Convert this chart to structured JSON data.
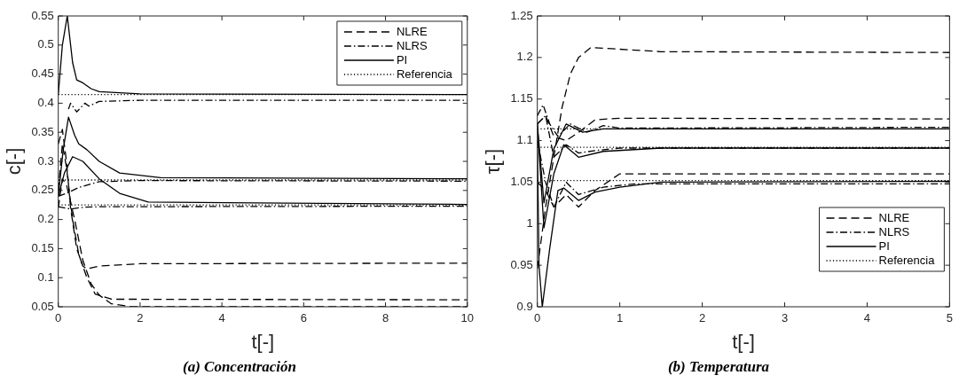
{
  "chart_data": [
    {
      "type": "line",
      "title": "(a) Concentración",
      "xlabel": "t[-]",
      "ylabel": "c[-]",
      "xlim": [
        0,
        10
      ],
      "ylim": [
        0.05,
        0.55
      ],
      "xticks": [
        0,
        2,
        4,
        6,
        8,
        10
      ],
      "yticks": [
        0.05,
        0.1,
        0.15,
        0.2,
        0.25,
        0.3,
        0.35,
        0.4,
        0.45,
        0.5,
        0.55
      ],
      "legend": "top right",
      "marker": "none",
      "series": [
        {
          "name": "NLRE",
          "color": "#000000",
          "line_style": "dashed",
          "x": [
            0,
            0.1,
            0.2,
            0.3,
            0.45,
            0.6,
            0.7,
            1,
            2,
            10
          ],
          "values": [
            0.33,
            0.355,
            0.3,
            0.22,
            0.15,
            0.12,
            0.115,
            0.12,
            0.124,
            0.125
          ]
        },
        {
          "color": "#000000",
          "line_style": "dashed",
          "x": [
            0,
            0.1,
            0.2,
            0.35,
            0.5,
            0.7,
            0.9,
            1.3,
            10
          ],
          "values": [
            0.25,
            0.33,
            0.29,
            0.2,
            0.14,
            0.1,
            0.072,
            0.063,
            0.062
          ]
        },
        {
          "color": "#000000",
          "line_style": "dashed",
          "x": [
            0,
            0.1,
            0.2,
            0.4,
            0.6,
            0.8,
            1,
            1.3,
            1.8,
            10
          ],
          "values": [
            0.22,
            0.27,
            0.26,
            0.2,
            0.13,
            0.09,
            0.07,
            0.055,
            0.05,
            0.05
          ]
        },
        {
          "name": "NLRS",
          "color": "#000000",
          "line_style": "dashdot",
          "x": [
            0.25,
            0.3,
            0.45,
            0.65,
            0.75,
            1,
            2,
            10
          ],
          "values": [
            0.39,
            0.4,
            0.385,
            0.4,
            0.395,
            0.403,
            0.405,
            0.405
          ]
        },
        {
          "color": "#000000",
          "line_style": "dashdot",
          "x": [
            0,
            0.2,
            0.5,
            1,
            2,
            10
          ],
          "values": [
            0.24,
            0.245,
            0.255,
            0.265,
            0.267,
            0.266
          ]
        },
        {
          "color": "#000000",
          "line_style": "dashdot",
          "x": [
            0,
            0.3,
            0.6,
            1,
            10
          ],
          "values": [
            0.222,
            0.218,
            0.221,
            0.222,
            0.223
          ]
        },
        {
          "name": "PI",
          "color": "#000000",
          "line_style": "solid",
          "x": [
            0,
            0.1,
            0.22,
            0.35,
            0.45,
            0.6,
            0.8,
            1,
            2,
            10
          ],
          "values": [
            0.415,
            0.5,
            0.55,
            0.47,
            0.44,
            0.435,
            0.425,
            0.42,
            0.416,
            0.415
          ]
        },
        {
          "color": "#000000",
          "line_style": "solid",
          "x": [
            0,
            0.12,
            0.25,
            0.4,
            0.5,
            0.7,
            1,
            1.5,
            2.5,
            10
          ],
          "values": [
            0.241,
            0.32,
            0.376,
            0.345,
            0.33,
            0.32,
            0.3,
            0.28,
            0.272,
            0.27
          ]
        },
        {
          "color": "#000000",
          "line_style": "solid",
          "x": [
            0,
            0.15,
            0.35,
            0.6,
            1,
            1.5,
            2.2,
            10
          ],
          "values": [
            0.24,
            0.28,
            0.308,
            0.3,
            0.27,
            0.245,
            0.23,
            0.226
          ]
        },
        {
          "name": "Referencia",
          "color": "#000000",
          "line_style": "dotted",
          "x": [
            0,
            10
          ],
          "values": [
            0.415,
            0.415
          ]
        },
        {
          "color": "#000000",
          "line_style": "dotted",
          "x": [
            0,
            10
          ],
          "values": [
            0.268,
            0.268
          ]
        },
        {
          "color": "#000000",
          "line_style": "dotted",
          "x": [
            0,
            10
          ],
          "values": [
            0.225,
            0.225
          ]
        }
      ]
    },
    {
      "type": "line",
      "title": "(b) Temperatura",
      "xlabel": "t[-]",
      "ylabel": "τ[-]",
      "xlim": [
        0,
        5
      ],
      "ylim": [
        0.9,
        1.25
      ],
      "xticks": [
        0,
        1,
        2,
        3,
        4,
        5
      ],
      "yticks": [
        0.9,
        0.95,
        1,
        1.05,
        1.1,
        1.15,
        1.2,
        1.25
      ],
      "legend": "bottom right",
      "marker": "none",
      "series": [
        {
          "name": "NLRE",
          "color": "#000000",
          "line_style": "dashed",
          "x": [
            0,
            0.1,
            0.2,
            0.3,
            0.4,
            0.5,
            0.65,
            1,
            1.5,
            5
          ],
          "values": [
            0.946,
            1.02,
            1.08,
            1.14,
            1.18,
            1.2,
            1.212,
            1.21,
            1.207,
            1.206
          ]
        },
        {
          "color": "#000000",
          "line_style": "dashed",
          "x": [
            0,
            0.1,
            0.2,
            0.35,
            0.5,
            0.7,
            1,
            5
          ],
          "values": [
            1.12,
            1.13,
            1.105,
            1.1,
            1.11,
            1.125,
            1.127,
            1.126
          ]
        },
        {
          "color": "#000000",
          "line_style": "dashed",
          "x": [
            0,
            0.1,
            0.2,
            0.35,
            0.5,
            0.7,
            1,
            5
          ],
          "values": [
            1.05,
            1.04,
            1.02,
            1.035,
            1.02,
            1.04,
            1.06,
            1.06
          ]
        },
        {
          "name": "NLRS",
          "color": "#000000",
          "line_style": "dashdot",
          "x": [
            0,
            0.07,
            0.15,
            0.25,
            0.4,
            0.6,
            0.8,
            1,
            5
          ],
          "values": [
            1.13,
            1.143,
            1.12,
            1.105,
            1.12,
            1.11,
            1.118,
            1.115,
            1.116
          ]
        },
        {
          "color": "#000000",
          "line_style": "dashdot",
          "x": [
            0,
            0.1,
            0.2,
            0.35,
            0.5,
            0.7,
            1,
            5
          ],
          "values": [
            1.12,
            1.13,
            1.08,
            1.095,
            1.085,
            1.088,
            1.091,
            1.091
          ]
        },
        {
          "color": "#000000",
          "line_style": "dashdot",
          "x": [
            0,
            0.1,
            0.2,
            0.35,
            0.5,
            0.8,
            1.2,
            5
          ],
          "values": [
            1.1,
            1.05,
            1.02,
            1.05,
            1.035,
            1.044,
            1.048,
            1.048
          ]
        },
        {
          "name": "PI",
          "color": "#000000",
          "line_style": "solid",
          "x": [
            0,
            0.08,
            0.2,
            0.35,
            0.55,
            0.8,
            5
          ],
          "values": [
            1.12,
            1.025,
            1.09,
            1.12,
            1.11,
            1.114,
            1.114
          ]
        },
        {
          "color": "#000000",
          "line_style": "solid",
          "x": [
            0,
            0.08,
            0.2,
            0.32,
            0.5,
            0.8,
            1.5,
            5
          ],
          "values": [
            1.12,
            0.995,
            1.06,
            1.095,
            1.08,
            1.087,
            1.091,
            1.091
          ]
        },
        {
          "color": "#000000",
          "line_style": "solid",
          "x": [
            0,
            0.02,
            0.06,
            0.15,
            0.25,
            0.32,
            0.5,
            0.7,
            1,
            1.5,
            5
          ],
          "values": [
            1.1,
            0.95,
            0.9,
            0.97,
            1.04,
            1.043,
            1.028,
            1.038,
            1.044,
            1.05,
            1.051
          ]
        },
        {
          "name": "Referencia",
          "color": "#000000",
          "line_style": "dotted",
          "x": [
            0,
            5
          ],
          "values": [
            1.114,
            1.114
          ]
        },
        {
          "color": "#000000",
          "line_style": "dotted",
          "x": [
            0,
            5
          ],
          "values": [
            1.092,
            1.092
          ]
        },
        {
          "color": "#000000",
          "line_style": "dotted",
          "x": [
            0,
            5
          ],
          "values": [
            1.052,
            1.052
          ]
        }
      ]
    }
  ]
}
